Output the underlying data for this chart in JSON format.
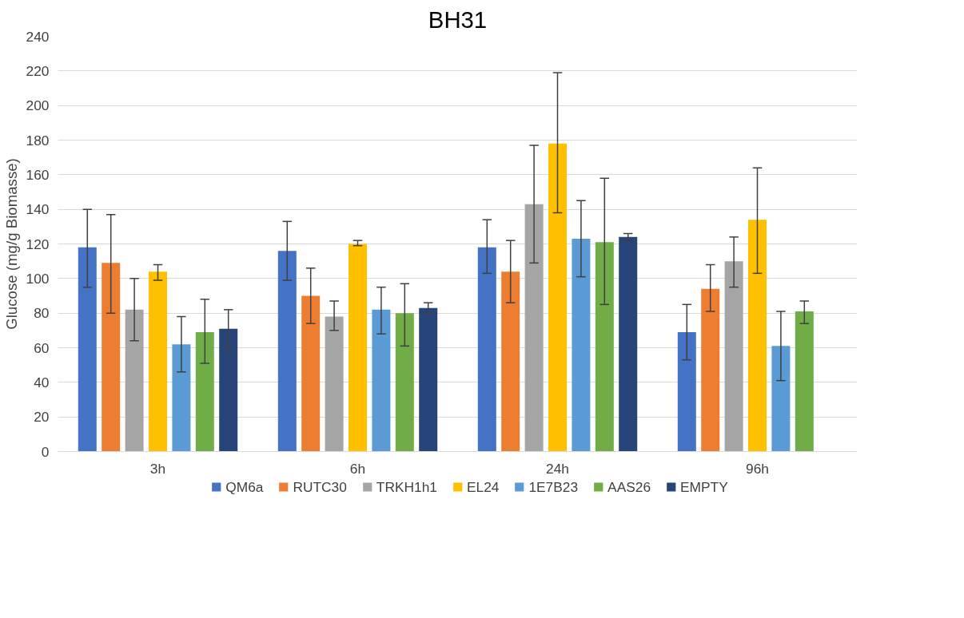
{
  "chart_data": {
    "type": "bar",
    "title": "BH31",
    "ylabel": "Glucose (mg/g Biomasse)",
    "categories": [
      "3h",
      "6h",
      "24h",
      "96h"
    ],
    "ylim": [
      0,
      240
    ],
    "yticks": [
      0,
      20,
      40,
      60,
      80,
      100,
      120,
      140,
      160,
      180,
      200,
      220,
      240
    ],
    "grid": "y",
    "legend": "bottom",
    "series": [
      {
        "name": "QM6a",
        "color": "#4472c4",
        "values": [
          118,
          116,
          118,
          69
        ],
        "errors": [
          [
            95,
            140
          ],
          [
            99,
            133
          ],
          [
            103,
            134
          ],
          [
            53,
            85
          ]
        ]
      },
      {
        "name": "RUTC30",
        "color": "#ed7d31",
        "values": [
          109,
          90,
          104,
          94
        ],
        "errors": [
          [
            80,
            137
          ],
          [
            74,
            106
          ],
          [
            86,
            122
          ],
          [
            81,
            108
          ]
        ]
      },
      {
        "name": "TRKH1h1",
        "color": "#a5a5a5",
        "values": [
          82,
          78,
          143,
          110
        ],
        "errors": [
          [
            64,
            100
          ],
          [
            70,
            87
          ],
          [
            109,
            177
          ],
          [
            95,
            124
          ]
        ]
      },
      {
        "name": "EL24",
        "color": "#ffc000",
        "values": [
          104,
          120,
          178,
          134
        ],
        "errors": [
          [
            99,
            108
          ],
          [
            119,
            122
          ],
          [
            138,
            219
          ],
          [
            103,
            164
          ]
        ]
      },
      {
        "name": "1E7B23",
        "color": "#5b9bd5",
        "values": [
          62,
          82,
          123,
          61
        ],
        "errors": [
          [
            46,
            78
          ],
          [
            68,
            95
          ],
          [
            101,
            145
          ],
          [
            41,
            81
          ]
        ]
      },
      {
        "name": "AAS26",
        "color": "#70ad47",
        "values": [
          69,
          80,
          121,
          81
        ],
        "errors": [
          [
            51,
            88
          ],
          [
            61,
            97
          ],
          [
            85,
            158
          ],
          [
            74,
            87
          ]
        ]
      },
      {
        "name": "EMPTY",
        "color": "#264478",
        "values": [
          71,
          83,
          124,
          null
        ],
        "errors": [
          [
            59,
            82
          ],
          [
            80,
            86
          ],
          [
            122,
            126
          ],
          null
        ]
      }
    ]
  }
}
